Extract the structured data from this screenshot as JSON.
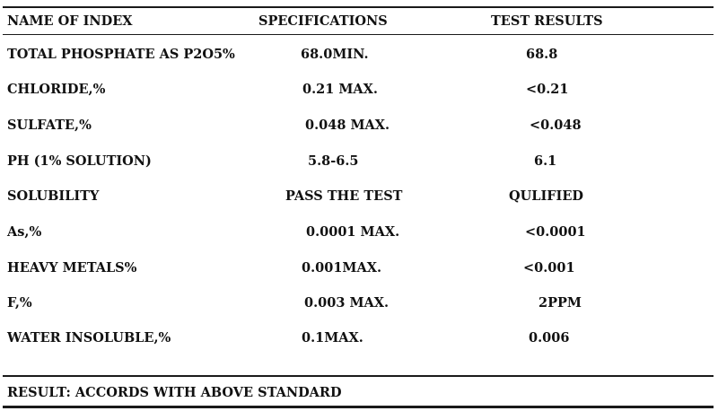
{
  "table": {
    "headers": {
      "name": "NAME OF INDEX",
      "specifications": "SPECIFICATIONS",
      "results": "TEST RESULTS"
    },
    "rows": [
      {
        "name": "TOTAL PHOSPHATE AS P2O5%",
        "spec": "68.0MIN.",
        "result": "68.8"
      },
      {
        "name": "CHLORIDE,%",
        "spec": "0.21 MAX.",
        "result": "<0.21"
      },
      {
        "name": "SULFATE,%",
        "spec": "0.048 MAX.",
        "result": "<0.048"
      },
      {
        "name": "PH (1% SOLUTION)",
        "spec": "5.8-6.5",
        "result": "6.1"
      },
      {
        "name": "SOLUBILITY",
        "spec": "PASS THE TEST",
        "result": "QULIFIED"
      },
      {
        "name": "As,%",
        "spec": "0.0001 MAX.",
        "result": "<0.0001"
      },
      {
        "name": "HEAVY METALS%",
        "spec": "0.001MAX.",
        "result": "<0.001"
      },
      {
        "name": "F,%",
        "spec": "0.003 MAX.",
        "result": "2PPM"
      },
      {
        "name": "WATER INSOLUBLE,%",
        "spec": "0.1MAX.",
        "result": "0.006"
      }
    ]
  },
  "footer": {
    "result_text": "RESULT: ACCORDS WITH ABOVE STANDARD"
  }
}
